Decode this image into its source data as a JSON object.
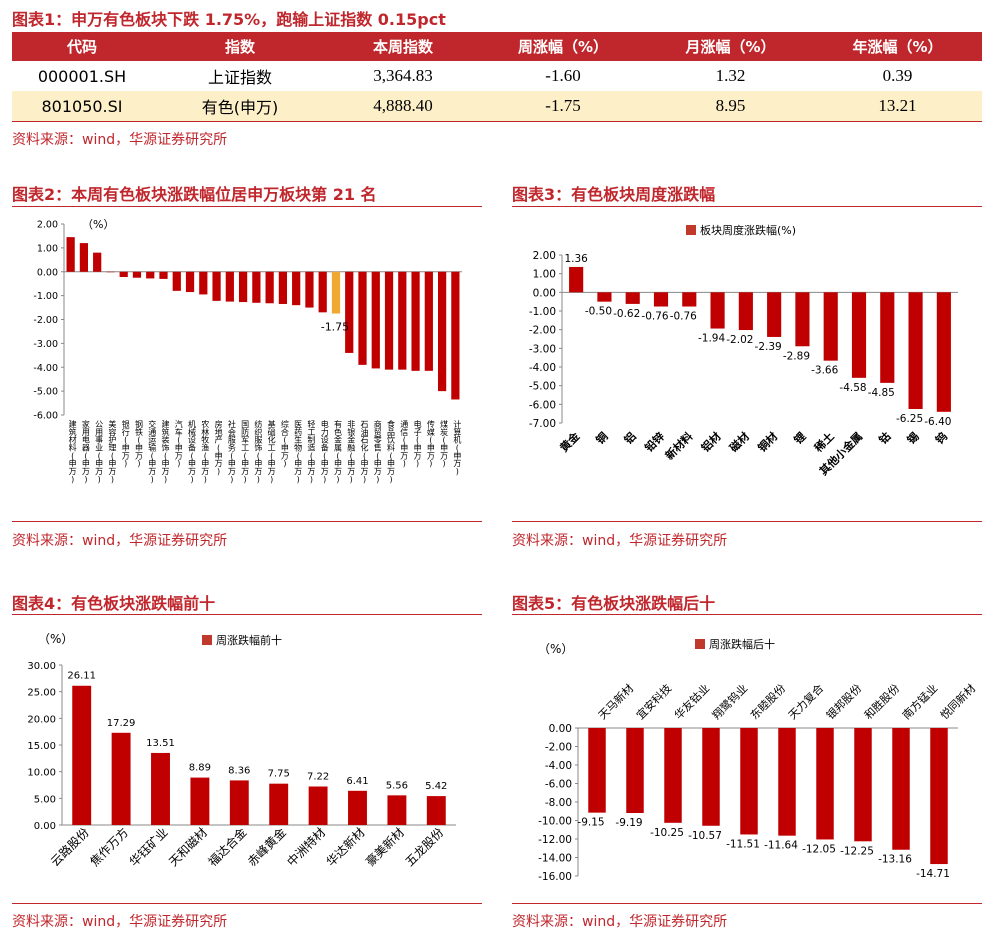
{
  "table1": {
    "title": "图表1：申万有色板块下跌 1.75%，跑输上证指数 0.15pct",
    "headers": [
      "代码",
      "指数",
      "本周指数",
      "周涨幅（%）",
      "月涨幅（%）",
      "年涨幅（%）"
    ],
    "rows": [
      [
        "000001.SH",
        "上证指数",
        "3,364.83",
        "-1.60",
        "1.32",
        "0.39"
      ],
      [
        "801050.SI",
        "有色(申万)",
        "4,888.40",
        "-1.75",
        "8.95",
        "13.21"
      ]
    ],
    "source": "资料来源：wind，华源证券研究所"
  },
  "charts": {
    "c2": {
      "title": "图表2：本周有色板块涨跌幅位居申万板块第 21 名",
      "source": "资料来源：wind，华源证券研究所"
    },
    "c3": {
      "title": "图表3：有色板块周度涨跌幅",
      "source": "资料来源：wind，华源证券研究所"
    },
    "c4": {
      "title": "图表4：有色板块涨跌幅前十",
      "source": "资料来源：wind，华源证券研究所"
    },
    "c5": {
      "title": "图表5：有色板块涨跌幅后十",
      "source": "资料来源：wind，华源证券研究所"
    }
  },
  "colors": {
    "red": "#c00000",
    "highlight": "#f0a830",
    "brand": "#c0272d",
    "legend_red": "#c0392b"
  },
  "chart_data": [
    {
      "id": "c2",
      "type": "bar",
      "unit_label": "（%）",
      "ylim": [
        -6,
        2
      ],
      "yticks": [
        "2.00",
        "1.00",
        "0.00",
        "-1.00",
        "-2.00",
        "-3.00",
        "-4.00",
        "-5.00",
        "-6.00"
      ],
      "highlight_index": 20,
      "highlight_label": "-1.75",
      "categories": [
        "建筑材料(申万)",
        "家用电器(申万)",
        "公用事业(申万)",
        "美容护理(申万)",
        "银行(申万)",
        "钢铁(申万)",
        "交通运输(申万)",
        "建筑装饰(申万)",
        "汽车(申万)",
        "机械设备(申万)",
        "农林牧渔(申万)",
        "房地产(申万)",
        "社会服务(申万)",
        "国防军工(申万)",
        "纺织服饰(申万)",
        "基础化工(申万)",
        "综合(申万)",
        "医药生物(申万)",
        "轻工制造(申万)",
        "电力设备(申万)",
        "有色金属(申万)",
        "非银金融(申万)",
        "石油石化(申万)",
        "煤炭(申万)",
        "商贸零售(申万)",
        "食品饮料(申万)",
        "通信(申万)",
        "电子(申万)",
        "传媒(申万)",
        "计算机(申万)"
      ],
      "xtick_labels": [
        "建筑材料(申万)",
        "",
        "公用事业(申万)",
        "",
        "银行(申万)",
        "钢铁(申万)",
        "交通运输(申万)",
        "建筑装饰(申万)",
        "汽车(申万)",
        "机械设备(申万)",
        "农林牧渔(申万)",
        "房地产(申万)",
        "社会服务(申万)",
        "国防军工(申万)",
        "纺织服饰(申万)",
        "基础化工(申万)",
        "综合(申万)",
        "医药生物(申万)",
        "轻工制造(申万)",
        "电力设备(申万)",
        "有色金属(申万)",
        "非银金融(申万)",
        "",
        "商贸零售(申万)",
        "食品饮料(申万)",
        "通信(申万)",
        "电子(申万)",
        "传媒(申万)",
        "",
        "计算机(申万)"
      ],
      "xtick_labels_alt": [
        "",
        "家用电器(申万)",
        "",
        "美容护理(申万)",
        "",
        "",
        "",
        "",
        "",
        "",
        "",
        "",
        "",
        "",
        "",
        "",
        "",
        "",
        "",
        "",
        "",
        "",
        "石油石化(申万)",
        "",
        "",
        "",
        "",
        "",
        "煤炭(申万)",
        ""
      ],
      "values": [
        1.45,
        1.2,
        0.8,
        0.0,
        -0.22,
        -0.25,
        -0.28,
        -0.3,
        -0.8,
        -0.85,
        -0.95,
        -1.22,
        -1.25,
        -1.27,
        -1.3,
        -1.32,
        -1.35,
        -1.4,
        -1.5,
        -1.7,
        -1.75,
        -3.4,
        -3.9,
        -4.05,
        -4.1,
        -4.1,
        -4.15,
        -4.15,
        -5.0,
        -5.35
      ]
    },
    {
      "id": "c3",
      "type": "bar",
      "legend": "板块周度涨跌幅(%)",
      "ylim": [
        -7,
        2
      ],
      "yticks": [
        "2.00",
        "1.00",
        "0.00",
        "-1.00",
        "-2.00",
        "-3.00",
        "-4.00",
        "-5.00",
        "-6.00",
        "-7.00"
      ],
      "categories": [
        "黄金",
        "铜",
        "铝",
        "铅锌",
        "新材料",
        "铝材",
        "磁材",
        "铜材",
        "锂",
        "稀土",
        "其他小金属",
        "钴",
        "锡",
        "钨"
      ],
      "values": [
        1.36,
        -0.5,
        -0.62,
        -0.76,
        -0.76,
        -1.94,
        -2.02,
        -2.39,
        -2.89,
        -3.66,
        -4.58,
        -4.85,
        -6.25,
        -6.4
      ],
      "labels": [
        "1.36",
        "-0.50",
        "-0.62",
        "-0.76",
        "-0.76",
        "-1.94",
        "-2.02",
        "-2.39",
        "-2.89",
        "-3.66",
        "-4.58",
        "-4.85",
        "-6.25",
        "-6.40"
      ]
    },
    {
      "id": "c4",
      "type": "bar",
      "unit_label": "（%）",
      "legend": "周涨跌幅前十",
      "ylim": [
        0,
        30
      ],
      "yticks": [
        "30.00",
        "25.00",
        "20.00",
        "15.00",
        "10.00",
        "5.00",
        "0.00"
      ],
      "categories": [
        "云路股份",
        "焦作万方",
        "华钰矿业",
        "天和磁材",
        "福达合金",
        "赤峰黄金",
        "中洲特材",
        "华达新材",
        "豪美新材",
        "五龙股份"
      ],
      "values": [
        26.11,
        17.29,
        13.51,
        8.89,
        8.36,
        7.75,
        7.22,
        6.41,
        5.56,
        5.42
      ],
      "labels": [
        "26.11",
        "17.29",
        "13.51",
        "8.89",
        "8.36",
        "7.75",
        "7.22",
        "6.41",
        "5.56",
        "5.42"
      ]
    },
    {
      "id": "c5",
      "type": "bar",
      "unit_label": "（%）",
      "legend": "周涨跌幅后十",
      "ylim": [
        -16,
        0
      ],
      "yticks": [
        "0.00",
        "-2.00",
        "-4.00",
        "-6.00",
        "-8.00",
        "-10.00",
        "-12.00",
        "-14.00",
        "-16.00"
      ],
      "categories": [
        "天马新材",
        "宜安科技",
        "华友钴业",
        "翔鹭钨业",
        "东睦股份",
        "天力复合",
        "银邦股份",
        "和胜股份",
        "南方锰业",
        "悦同新材"
      ],
      "values": [
        -9.15,
        -9.19,
        -10.25,
        -10.57,
        -11.51,
        -11.64,
        -12.05,
        -12.25,
        -13.16,
        -14.71
      ],
      "labels": [
        "-9.15",
        "-9.19",
        "-10.25",
        "-10.57",
        "-11.51",
        "-11.64",
        "-12.05",
        "-12.25",
        "-13.16",
        "-14.71"
      ]
    }
  ]
}
